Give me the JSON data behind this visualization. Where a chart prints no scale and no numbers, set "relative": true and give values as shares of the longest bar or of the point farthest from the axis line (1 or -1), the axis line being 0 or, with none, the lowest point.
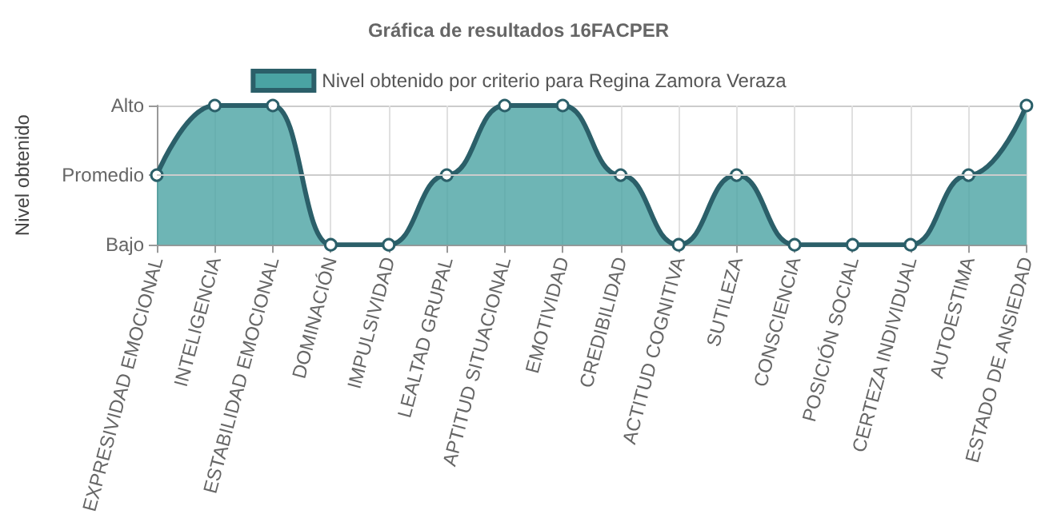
{
  "chart_data": {
    "type": "area",
    "title": "Gráfica de resultados 16FACPER",
    "ylabel": "Nivel obtenido",
    "categories": [
      "EXPRESIVIDAD EMOCIONAL",
      "INTELIGENCIA",
      "ESTABILIDAD EMOCIONAL",
      "DOMINACIÓN",
      "IMPULSIVIDAD",
      "LEALTAD GRUPAL",
      "APTITUD SITUACIONAL",
      "EMOTIVIDAD",
      "CREDIBILIDAD",
      "ACTITUD COGNITIVA",
      "SUTILEZA",
      "CONSCIENCIA",
      "POSICIÓN SOCIAL",
      "CERTEZA INDIVIDUAL",
      "AUTOESTIMA",
      "ESTADO DE ANSIEDAD"
    ],
    "y_categories": [
      "Alto",
      "Promedio",
      "Bajo"
    ],
    "relative": true,
    "ref_lines": [
      {
        "axis": "y",
        "value": 0.5,
        "color": "#cccccc"
      }
    ],
    "series": [
      {
        "name": "Nivel obtenido por criterio para Regina Zamora Veraza",
        "color": "#2b5f69",
        "values": [
          0.5,
          1,
          1,
          0,
          0,
          0.5,
          1,
          1,
          0.5,
          0,
          0.5,
          0,
          0,
          0,
          0.5,
          1
        ]
      }
    ],
    "grid": true,
    "legend": "top",
    "marker": "circle"
  }
}
